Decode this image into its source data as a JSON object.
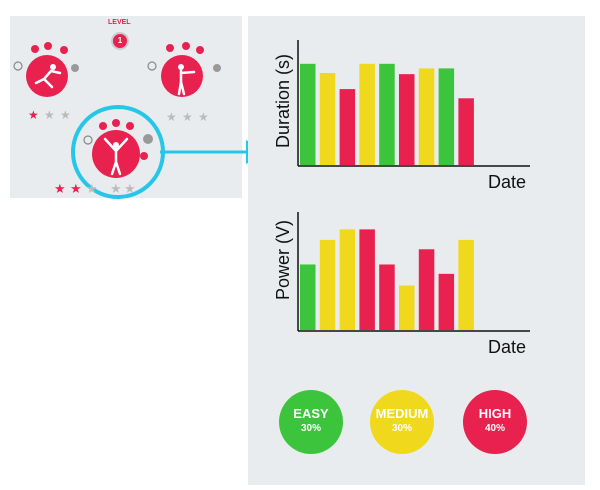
{
  "level": {
    "label": "LEVEL",
    "value": "1"
  },
  "colors": {
    "easy": "#3cc43c",
    "medium": "#f0d91c",
    "high": "#e8214f",
    "arrow": "#25c6e8",
    "panel": "#e9ecee"
  },
  "exercises": [
    {
      "name": "lunge-exercise",
      "stars": 1
    },
    {
      "name": "arm-raise-exercise",
      "stars": 0
    },
    {
      "name": "arms-up-exercise",
      "stars": 2
    }
  ],
  "chart_data": [
    {
      "type": "bar",
      "xlabel": "Date",
      "ylabel": "Duration (s)",
      "ylim": [
        0,
        100
      ],
      "values": [
        88,
        80,
        66,
        88,
        88,
        79,
        84,
        84,
        58
      ],
      "difficulty": [
        "easy",
        "medium",
        "high",
        "medium",
        "easy",
        "high",
        "medium",
        "easy",
        "high"
      ]
    },
    {
      "type": "bar",
      "xlabel": "Date",
      "ylabel": "Power (V)",
      "ylim": [
        0,
        100
      ],
      "values": [
        56,
        77,
        86,
        86,
        56,
        38,
        69,
        48,
        77
      ],
      "difficulty": [
        "easy",
        "medium",
        "medium",
        "high",
        "high",
        "medium",
        "high",
        "high",
        "medium"
      ]
    }
  ],
  "difficulty_legend": [
    {
      "name": "EASY",
      "percent": "30%",
      "key": "easy"
    },
    {
      "name": "MEDIUM",
      "percent": "30%",
      "key": "medium"
    },
    {
      "name": "HIGH",
      "percent": "40%",
      "key": "high"
    }
  ]
}
